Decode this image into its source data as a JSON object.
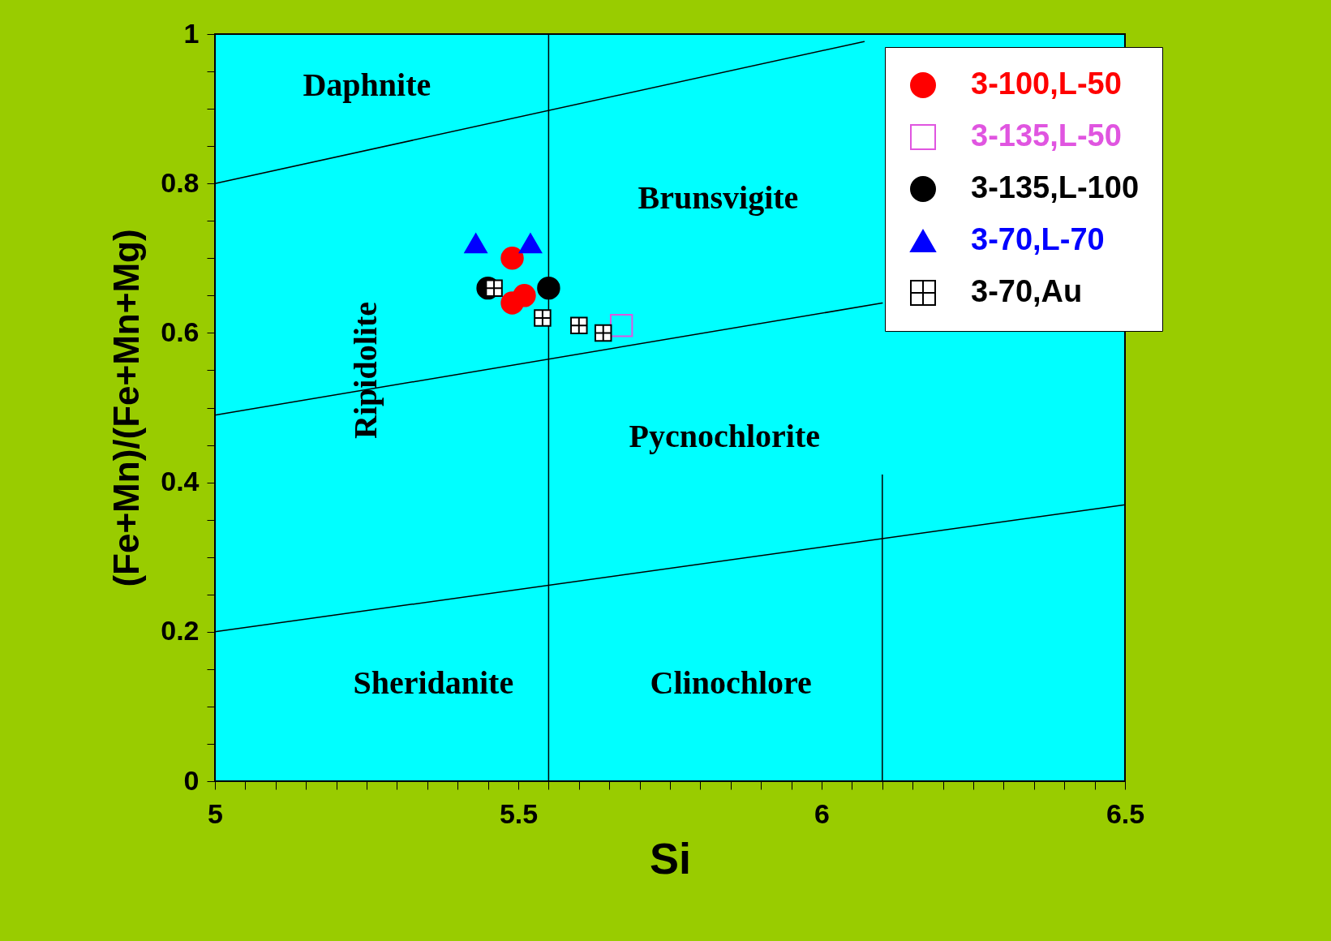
{
  "chart_data": {
    "type": "scatter",
    "xlabel": "Si",
    "ylabel": "(Fe+Mn)/(Fe+Mn+Mg)",
    "xlim": [
      5,
      6.5
    ],
    "ylim": [
      0,
      1
    ],
    "xticks": [
      5,
      {
        "value": 5.05,
        "label": null
      },
      {
        "value": 5.1,
        "label": null
      },
      {
        "value": 5.15,
        "label": null
      },
      {
        "value": 5.2,
        "label": null
      },
      {
        "value": 5.25,
        "label": null
      },
      {
        "value": 5.3,
        "label": null
      },
      {
        "value": 5.35,
        "label": null
      },
      {
        "value": 5.4,
        "label": null
      },
      {
        "value": 5.45,
        "label": null
      },
      5.5,
      {
        "value": 5.55,
        "label": null
      },
      {
        "value": 5.6,
        "label": null
      },
      {
        "value": 5.65,
        "label": null
      },
      {
        "value": 5.7,
        "label": null
      },
      {
        "value": 5.75,
        "label": null
      },
      {
        "value": 5.8,
        "label": null
      },
      {
        "value": 5.85,
        "label": null
      },
      {
        "value": 5.9,
        "label": null
      },
      {
        "value": 5.95,
        "label": null
      },
      6,
      {
        "value": 6.05,
        "label": null
      },
      {
        "value": 6.1,
        "label": null
      },
      {
        "value": 6.15,
        "label": null
      },
      {
        "value": 6.2,
        "label": null
      },
      {
        "value": 6.25,
        "label": null
      },
      {
        "value": 6.3,
        "label": null
      },
      {
        "value": 6.35,
        "label": null
      },
      {
        "value": 6.4,
        "label": null
      },
      {
        "value": 6.45,
        "label": null
      },
      6.5
    ],
    "yticks": [
      0,
      {
        "value": 0.05,
        "label": null
      },
      {
        "value": 0.1,
        "label": null
      },
      {
        "value": 0.15,
        "label": null
      },
      0.2,
      {
        "value": 0.25,
        "label": null
      },
      {
        "value": 0.3,
        "label": null
      },
      {
        "value": 0.35,
        "label": null
      },
      0.4,
      {
        "value": 0.45,
        "label": null
      },
      {
        "value": 0.5,
        "label": null
      },
      {
        "value": 0.55,
        "label": null
      },
      0.6,
      {
        "value": 0.65,
        "label": null
      },
      {
        "value": 0.7,
        "label": null
      },
      {
        "value": 0.75,
        "label": null
      },
      0.8,
      {
        "value": 0.85,
        "label": null
      },
      {
        "value": 0.9,
        "label": null
      },
      {
        "value": 0.95,
        "label": null
      },
      1
    ],
    "grid": false,
    "legend": "top right",
    "series": [
      {
        "name": "3-100,L-50",
        "type": "scatter",
        "marker": "circle",
        "color": "#ff0000",
        "x": [
          5.49,
          5.49,
          5.51
        ],
        "values": [
          0.7,
          0.64,
          0.65
        ]
      },
      {
        "name": "3-135,L-50",
        "type": "scatter",
        "marker": "square",
        "color": "#e055e0",
        "x": [
          5.67
        ],
        "values": [
          0.61
        ]
      },
      {
        "name": "3-135,L-100",
        "type": "scatter",
        "marker": "circle",
        "color": "#000000",
        "x": [
          5.55,
          5.45
        ],
        "values": [
          0.66,
          0.66
        ]
      },
      {
        "name": "3-70,L-70",
        "type": "scatter",
        "marker": "triangle",
        "color": "#0000ff",
        "x": [
          5.43,
          5.52
        ],
        "values": [
          0.72,
          0.72
        ]
      },
      {
        "name": "3-70,Au",
        "type": "scatter",
        "marker": "cross",
        "color": "#000000",
        "x": [
          5.46,
          5.54,
          5.6,
          5.64
        ],
        "values": [
          0.66,
          0.62,
          0.61,
          0.6
        ]
      },
      {
        "type": "line",
        "color": "#000000",
        "x": [
          5,
          6.07
        ],
        "values": [
          0.8,
          0.99
        ]
      },
      {
        "type": "line",
        "color": "#000000",
        "x": [
          5,
          6.1
        ],
        "values": [
          0.49,
          0.64
        ]
      },
      {
        "type": "line",
        "color": "#000000",
        "x": [
          5,
          6.5
        ],
        "values": [
          0.2,
          0.37
        ]
      },
      {
        "type": "line",
        "color": "#000000",
        "x": [
          6.1,
          6.1
        ],
        "values": [
          0,
          0.41
        ]
      }
    ],
    "ref_lines": [
      {
        "axis": "x",
        "value": 5.55,
        "color": "#000000"
      }
    ],
    "annotations": [
      "Daphnite",
      "Brunsvigite",
      "Ripidolite",
      "Pycnochlorite",
      "Sheridanite",
      "Clinochlore"
    ]
  }
}
